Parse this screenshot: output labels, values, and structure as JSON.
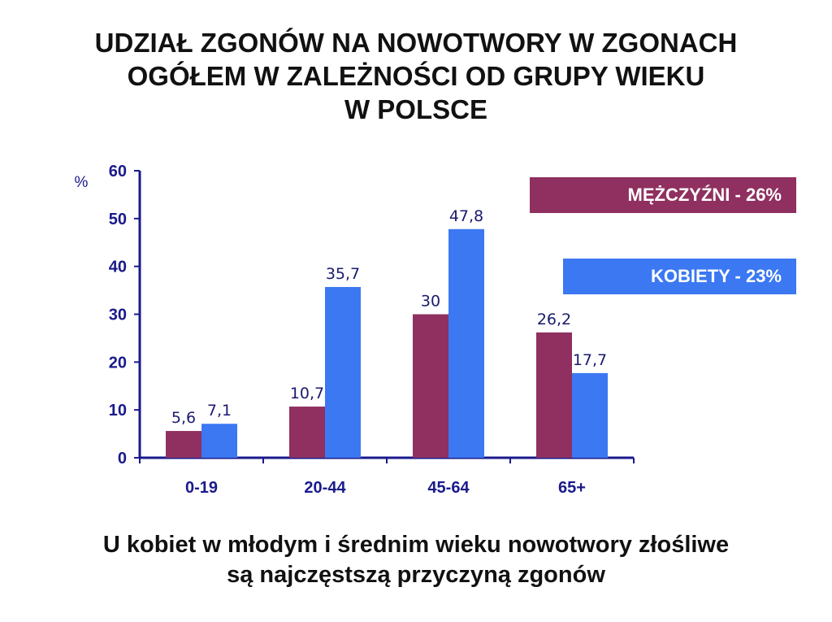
{
  "title_lines": [
    "UDZIAŁ ZGONÓW NA NOWOTWORY W ZGONACH",
    "OGÓŁEM W ZALEŻNOŚCI OD GRUPY WIEKU",
    "W POLSCE"
  ],
  "subtitle_lines": [
    "U kobiet  w młodym i średnim wieku nowotwory złośliwe",
    "są najczęstszą przyczyną zgonów"
  ],
  "colors": {
    "men": "#8f3060",
    "women": "#3b78f2",
    "axis": "#1a1a8c",
    "label": "#1a1a6e"
  },
  "legend": {
    "men": "MĘŻCZYŹNI - 26%",
    "women": "KOBIETY - 23%"
  },
  "chart_data": {
    "type": "bar",
    "ylabel": "%",
    "ylim": [
      0,
      60
    ],
    "yticks": [
      "0",
      "10",
      "20",
      "30",
      "40",
      "50",
      "60"
    ],
    "categories": [
      "0-19",
      "20-44",
      "45-64",
      "65+"
    ],
    "series": [
      {
        "name": "MĘŻCZYŹNI - 26%",
        "values": [
          5.6,
          10.7,
          30,
          26.2
        ],
        "labels": [
          "5,6",
          "10,7",
          "30",
          "26,2"
        ]
      },
      {
        "name": "KOBIETY - 23%",
        "values": [
          7.1,
          35.7,
          47.8,
          17.7
        ],
        "labels": [
          "7,1",
          "35,7",
          "47,8",
          "17,7"
        ]
      }
    ],
    "legend_position": "top-right",
    "grid": false
  }
}
